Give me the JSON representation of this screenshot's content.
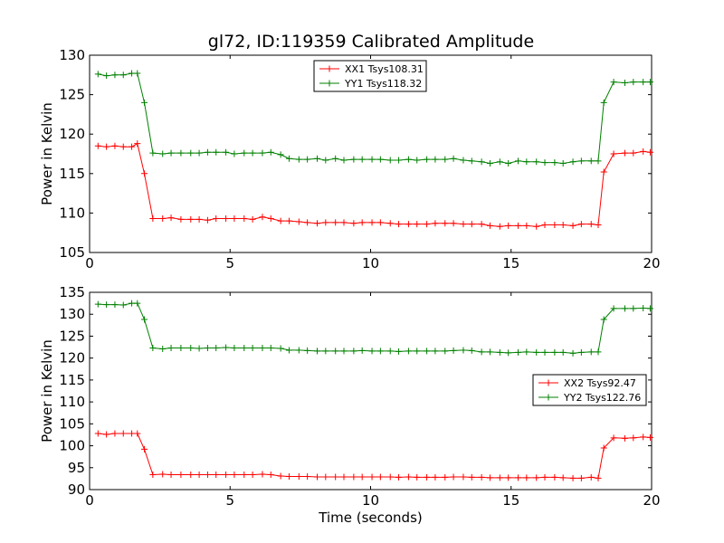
{
  "title": "gl72, ID:119359 Calibrated Amplitude",
  "chart_data": [
    {
      "type": "line",
      "ylabel": "Power in Kelvin",
      "xlabel": "",
      "xlim": [
        0,
        20
      ],
      "ylim": [
        105,
        130
      ],
      "xticks": [
        "0",
        "5",
        "10",
        "15",
        "20"
      ],
      "yticks": [
        "105",
        "110",
        "115",
        "120",
        "125",
        "130"
      ],
      "legend": "top-center",
      "x": [
        0.3,
        0.6,
        0.9,
        1.2,
        1.5,
        1.7,
        1.95,
        2.25,
        2.6,
        2.9,
        3.25,
        3.6,
        3.9,
        4.2,
        4.5,
        4.85,
        5.15,
        5.5,
        5.8,
        6.15,
        6.45,
        6.8,
        7.1,
        7.45,
        7.75,
        8.1,
        8.4,
        8.75,
        9.05,
        9.4,
        9.7,
        10.05,
        10.35,
        10.7,
        11.0,
        11.35,
        11.65,
        12.0,
        12.3,
        12.65,
        12.95,
        13.3,
        13.6,
        13.95,
        14.25,
        14.6,
        14.9,
        15.25,
        15.55,
        15.9,
        16.2,
        16.55,
        16.85,
        17.2,
        17.5,
        17.85,
        18.1,
        18.3,
        18.65,
        19.05,
        19.35,
        19.7,
        19.95
      ],
      "series": [
        {
          "name": "XX1 Tsys108.31",
          "color": "#ff0000",
          "values": [
            118.5,
            118.4,
            118.5,
            118.4,
            118.4,
            118.8,
            115.0,
            109.3,
            109.3,
            109.4,
            109.2,
            109.2,
            109.2,
            109.1,
            109.3,
            109.3,
            109.3,
            109.3,
            109.2,
            109.5,
            109.3,
            109.0,
            109.0,
            108.9,
            108.8,
            108.7,
            108.8,
            108.8,
            108.8,
            108.7,
            108.8,
            108.8,
            108.8,
            108.7,
            108.6,
            108.6,
            108.6,
            108.6,
            108.7,
            108.7,
            108.7,
            108.6,
            108.6,
            108.6,
            108.4,
            108.3,
            108.4,
            108.4,
            108.4,
            108.3,
            108.5,
            108.5,
            108.5,
            108.4,
            108.6,
            108.6,
            108.5,
            115.2,
            117.5,
            117.6,
            117.6,
            117.8,
            117.7
          ]
        },
        {
          "name": "YY1 Tsys118.32",
          "color": "#008000",
          "values": [
            127.6,
            127.4,
            127.5,
            127.5,
            127.7,
            127.7,
            124.0,
            117.6,
            117.5,
            117.6,
            117.6,
            117.6,
            117.6,
            117.7,
            117.7,
            117.7,
            117.5,
            117.6,
            117.6,
            117.6,
            117.7,
            117.4,
            116.9,
            116.8,
            116.8,
            116.9,
            116.7,
            116.9,
            116.7,
            116.8,
            116.8,
            116.8,
            116.8,
            116.7,
            116.7,
            116.8,
            116.7,
            116.8,
            116.8,
            116.8,
            116.9,
            116.7,
            116.6,
            116.5,
            116.3,
            116.5,
            116.3,
            116.6,
            116.5,
            116.5,
            116.4,
            116.4,
            116.3,
            116.5,
            116.6,
            116.6,
            116.6,
            124.0,
            126.6,
            126.5,
            126.6,
            126.6,
            126.6
          ]
        }
      ]
    },
    {
      "type": "line",
      "ylabel": "Power in Kelvin",
      "xlabel": "Time (seconds)",
      "xlim": [
        0,
        20
      ],
      "ylim": [
        90,
        135
      ],
      "xticks": [
        "0",
        "5",
        "10",
        "15",
        "20"
      ],
      "yticks": [
        "90",
        "95",
        "100",
        "105",
        "110",
        "115",
        "120",
        "125",
        "130",
        "135"
      ],
      "legend": "center-right",
      "x": [
        0.3,
        0.6,
        0.9,
        1.2,
        1.5,
        1.7,
        1.95,
        2.25,
        2.6,
        2.9,
        3.25,
        3.6,
        3.9,
        4.2,
        4.5,
        4.85,
        5.15,
        5.5,
        5.8,
        6.15,
        6.45,
        6.8,
        7.1,
        7.45,
        7.75,
        8.1,
        8.4,
        8.75,
        9.05,
        9.4,
        9.7,
        10.05,
        10.35,
        10.7,
        11.0,
        11.35,
        11.65,
        12.0,
        12.3,
        12.65,
        12.95,
        13.3,
        13.6,
        13.95,
        14.25,
        14.6,
        14.9,
        15.25,
        15.55,
        15.9,
        16.2,
        16.55,
        16.85,
        17.2,
        17.5,
        17.85,
        18.1,
        18.3,
        18.65,
        19.05,
        19.35,
        19.7,
        19.95
      ],
      "series": [
        {
          "name": "XX2 Tsys92.47",
          "color": "#ff0000",
          "values": [
            102.8,
            102.6,
            102.8,
            102.8,
            102.8,
            102.8,
            99.2,
            93.4,
            93.5,
            93.4,
            93.4,
            93.4,
            93.4,
            93.4,
            93.4,
            93.4,
            93.4,
            93.4,
            93.4,
            93.5,
            93.4,
            93.1,
            93.0,
            93.0,
            93.0,
            92.9,
            92.9,
            92.9,
            92.9,
            92.9,
            92.9,
            92.9,
            92.9,
            92.9,
            92.8,
            92.9,
            92.8,
            92.8,
            92.8,
            92.8,
            92.9,
            92.9,
            92.8,
            92.8,
            92.7,
            92.7,
            92.7,
            92.7,
            92.7,
            92.7,
            92.8,
            92.8,
            92.7,
            92.6,
            92.6,
            92.8,
            92.6,
            99.5,
            101.8,
            101.7,
            101.8,
            102.0,
            101.9
          ]
        },
        {
          "name": "YY2 Tsys122.76",
          "color": "#008000",
          "values": [
            132.3,
            132.2,
            132.2,
            132.1,
            132.5,
            132.5,
            128.8,
            122.3,
            122.1,
            122.3,
            122.3,
            122.3,
            122.2,
            122.3,
            122.3,
            122.4,
            122.3,
            122.3,
            122.3,
            122.3,
            122.3,
            122.2,
            121.8,
            121.8,
            121.7,
            121.6,
            121.6,
            121.6,
            121.6,
            121.6,
            121.7,
            121.6,
            121.6,
            121.6,
            121.5,
            121.6,
            121.6,
            121.6,
            121.6,
            121.6,
            121.7,
            121.8,
            121.7,
            121.4,
            121.4,
            121.3,
            121.2,
            121.3,
            121.4,
            121.3,
            121.3,
            121.3,
            121.3,
            121.1,
            121.3,
            121.4,
            121.4,
            128.8,
            131.3,
            131.3,
            131.3,
            131.4,
            131.3
          ]
        }
      ]
    }
  ]
}
